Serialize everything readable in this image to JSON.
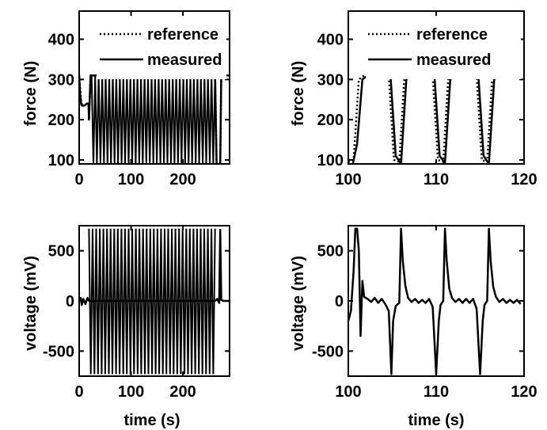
{
  "chart_data": [
    {
      "id": "force_full",
      "type": "line",
      "xlim": [
        0,
        290
      ],
      "ylim": [
        90,
        470
      ],
      "xticks": [
        0,
        100,
        200
      ],
      "yticks": [
        100,
        200,
        300,
        400
      ],
      "xlabel": "",
      "ylabel": "force (N)",
      "legend": {
        "placement": "top-right",
        "entries": [
          "reference",
          "measured"
        ]
      },
      "series": [
        {
          "name": "reference",
          "style": "dotted",
          "x": [
            0,
            4,
            6,
            10,
            15,
            18,
            19,
            22,
            24,
            262,
            265,
            272,
            274,
            290
          ],
          "y": [
            310,
            245,
            235,
            235,
            240,
            240,
            200,
            310,
            310,
            310,
            90,
            90,
            310,
            310
          ]
        },
        {
          "name": "measured",
          "style": "solid",
          "x": [
            0,
            2,
            4,
            6,
            10,
            15,
            18,
            19,
            22,
            24,
            262,
            265,
            272,
            274,
            290
          ],
          "y": [
            310,
            260,
            238,
            235,
            235,
            240,
            240,
            200,
            310,
            310,
            310,
            90,
            90,
            310,
            310
          ]
        }
      ],
      "note_oscillation": {
        "x_start": 24,
        "x_end": 262,
        "low": 90,
        "high": 310
      }
    },
    {
      "id": "force_zoom",
      "type": "line",
      "xlim": [
        100,
        120
      ],
      "ylim": [
        90,
        470
      ],
      "xticks": [
        100,
        110,
        120
      ],
      "yticks": [
        100,
        200,
        300,
        400
      ],
      "xlabel": "",
      "ylabel": "force (N)",
      "legend": {
        "placement": "top-right",
        "entries": [
          "reference",
          "measured"
        ]
      },
      "series": [
        {
          "name": "reference",
          "style": "dotted",
          "x": [
            100,
            100.6,
            101.2,
            101.8,
            104.6,
            105.2,
            105.8,
            106.4,
            109.6,
            110.2,
            110.8,
            111.4,
            114.6,
            115.2,
            115.8,
            116.4,
            119.5
          ],
          "y": [
            95,
            100,
            300,
            310,
            310,
            100,
            95,
            310,
            310,
            100,
            95,
            310,
            310,
            100,
            95,
            310,
            310
          ]
        },
        {
          "name": "measured",
          "style": "solid",
          "x": [
            100,
            100.5,
            101.0,
            101.6,
            102.2,
            104.8,
            105.4,
            106.0,
            106.6,
            107.2,
            109.8,
            110.4,
            111.0,
            111.6,
            112.2,
            114.8,
            115.4,
            116.0,
            116.6,
            117.2,
            119.5
          ],
          "y": [
            90,
            88,
            140,
            300,
            310,
            310,
            110,
            90,
            300,
            310,
            310,
            110,
            92,
            300,
            310,
            310,
            110,
            90,
            300,
            310,
            310
          ]
        }
      ]
    },
    {
      "id": "voltage_full",
      "type": "line",
      "xlim": [
        0,
        290
      ],
      "ylim": [
        -750,
        750
      ],
      "xticks": [
        0,
        100,
        200
      ],
      "yticks": [
        -500,
        0,
        500
      ],
      "xlabel": "time (s)",
      "ylabel": "voltage (mV)",
      "series": [
        {
          "name": "",
          "style": "solid",
          "x": [
            0,
            3,
            5,
            8,
            12,
            16,
            19,
            262,
            266,
            270,
            272,
            274,
            278,
            290
          ],
          "y": [
            0,
            30,
            -40,
            20,
            -30,
            30,
            0,
            0,
            20,
            -20,
            710,
            10,
            0,
            0
          ]
        }
      ],
      "note_oscillation": {
        "x_start": 19,
        "x_end": 262,
        "low": -730,
        "high": 720
      }
    },
    {
      "id": "voltage_zoom",
      "type": "line",
      "xlim": [
        100,
        120
      ],
      "ylim": [
        -750,
        750
      ],
      "xticks": [
        100,
        110,
        120
      ],
      "yticks": [
        -500,
        0,
        500
      ],
      "xlabel": "time (s)",
      "ylabel": "voltage (mV)",
      "series": [
        {
          "name": "",
          "style": "solid",
          "x": [
            100.0,
            100.3,
            100.6,
            100.8,
            101.0,
            101.2,
            101.4,
            101.6,
            101.8,
            102.2,
            102.6,
            103.0,
            103.4,
            103.8,
            104.2,
            104.6,
            104.9,
            105.1,
            105.4,
            105.8,
            106.0,
            106.2,
            106.5,
            106.8,
            107.2,
            107.6,
            108.0,
            108.4,
            108.8,
            109.2,
            109.6,
            110.0,
            110.3,
            110.5,
            110.8,
            111.0,
            111.2,
            111.5,
            111.8,
            112.2,
            112.6,
            113.0,
            113.4,
            113.8,
            114.2,
            114.6,
            115.0,
            115.3,
            115.5,
            115.8,
            116.0,
            116.2,
            116.5,
            116.8,
            117.2,
            117.6,
            118.0,
            118.4,
            118.8,
            119.2,
            119.6
          ],
          "y": [
            -200,
            -100,
            300,
            720,
            720,
            500,
            -350,
            200,
            40,
            20,
            -10,
            30,
            -20,
            20,
            -30,
            -100,
            -730,
            -200,
            -50,
            -20,
            720,
            400,
            150,
            30,
            -10,
            20,
            -20,
            10,
            -20,
            20,
            -60,
            -730,
            -200,
            -40,
            0,
            720,
            400,
            120,
            30,
            -10,
            20,
            -20,
            20,
            -20,
            20,
            -80,
            -730,
            -200,
            -40,
            0,
            720,
            400,
            140,
            40,
            -10,
            20,
            -20,
            10,
            -20,
            10,
            -30
          ]
        }
      ]
    }
  ]
}
